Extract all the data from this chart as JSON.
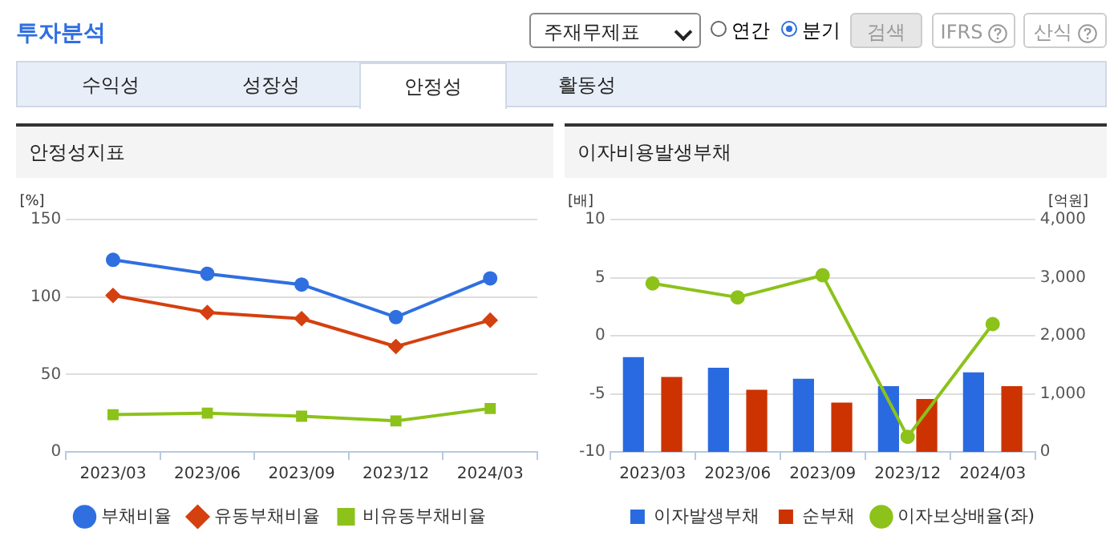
{
  "chart_data": [
    {
      "type": "line",
      "title": "안정성지표",
      "ylabel": "[%]",
      "annotations": [
        "투자분석",
        "주재무제표",
        "연간",
        "분기",
        "검색",
        "IFRS",
        "산식",
        "수익성",
        "성장성",
        "안정성",
        "활동성"
      ],
      "categories": [
        "2023/03",
        "2023/06",
        "2023/09",
        "2023/12",
        "2024/03"
      ],
      "series": [
        {
          "name": "부채비율",
          "color": "#2f6fe0",
          "marker": "circle",
          "values": [
            124,
            115,
            108,
            87,
            112
          ]
        },
        {
          "name": "유동부채비율",
          "color": "#d4400f",
          "marker": "diamond",
          "values": [
            101,
            90,
            86,
            68,
            85
          ]
        },
        {
          "name": "비유동부채비율",
          "color": "#8cc21a",
          "marker": "square",
          "values": [
            24,
            25,
            23,
            20,
            28
          ]
        }
      ],
      "ylim": [
        0,
        150
      ],
      "yticks": [
        0,
        50,
        100,
        150
      ],
      "grid": "y",
      "legend": "bottom"
    },
    {
      "type": "bar",
      "title": "이자비용발생부채",
      "ylabel": "[배]",
      "y2label": "[억원]",
      "categories": [
        "2023/03",
        "2023/06",
        "2023/09",
        "2023/12",
        "2024/03"
      ],
      "series": [
        {
          "name": "이자발생부채",
          "color": "#2a6ae0",
          "axis": "y2",
          "values": [
            1630,
            1450,
            1260,
            1130,
            1370
          ]
        },
        {
          "name": "순부채",
          "color": "#cc3300",
          "axis": "y2",
          "values": [
            1290,
            1070,
            850,
            910,
            1130
          ]
        },
        {
          "name": "이자보상배율(좌)",
          "type": "line",
          "color": "#8cc21a",
          "marker": "circle",
          "values": [
            4.5,
            3.3,
            5.2,
            -8.7,
            1.0
          ]
        }
      ],
      "ylim": [
        -10,
        10
      ],
      "yticks": [
        -10,
        -5,
        0,
        5,
        10
      ],
      "y2lim": [
        0,
        4000
      ],
      "y2ticks": [
        0,
        {
          "value": 1000,
          "label": "1,000"
        },
        {
          "value": 2000,
          "label": "2,000"
        },
        {
          "value": 3000,
          "label": "3,000"
        },
        {
          "value": 4000,
          "label": "4,000"
        }
      ],
      "grid": "y",
      "legend": "bottom"
    }
  ]
}
